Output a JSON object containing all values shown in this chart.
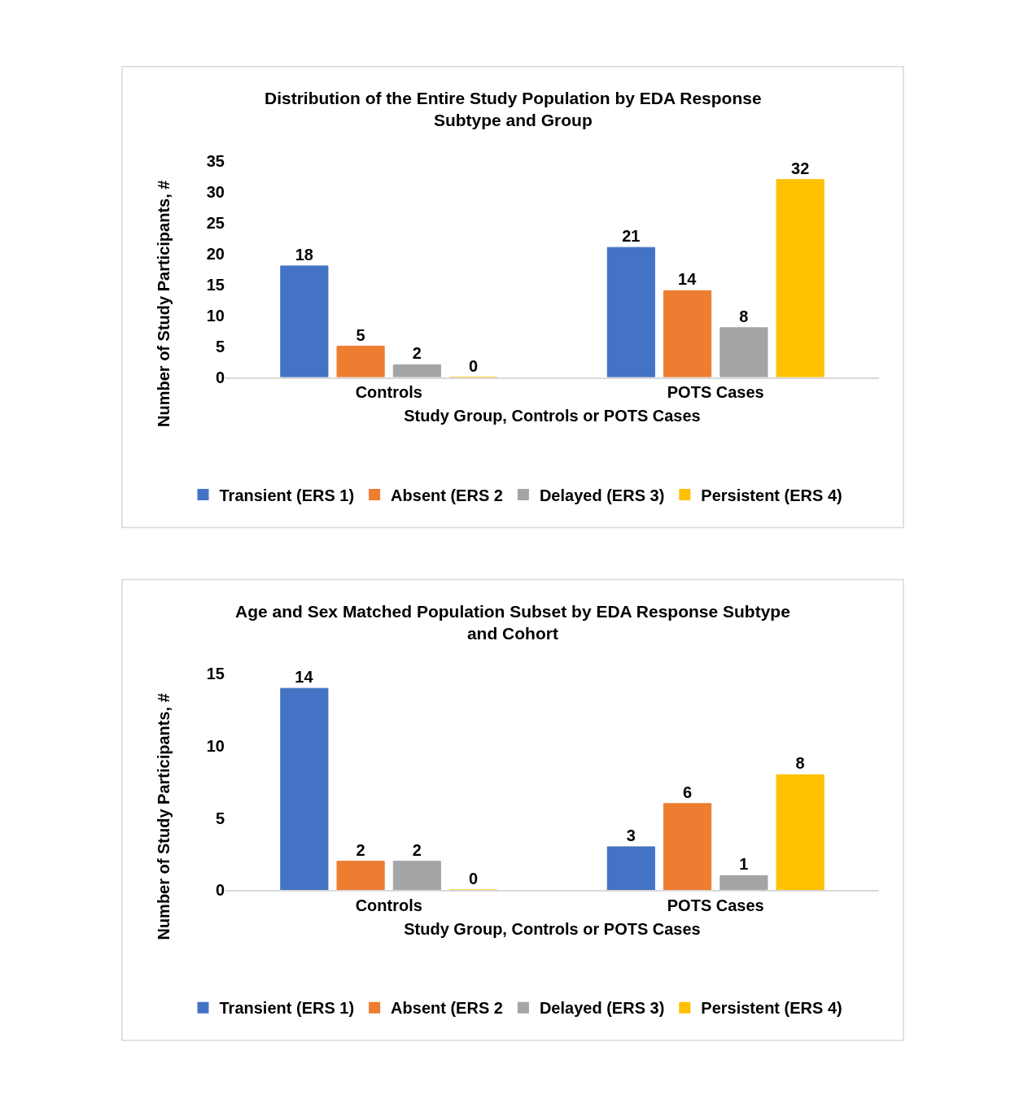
{
  "chart_data": [
    {
      "type": "bar",
      "title": "Distribution of the Entire Study Population by EDA Response Subtype and Group",
      "xlabel": "Study Group, Controls or POTS Cases",
      "ylabel": "Number of Study Participants, #",
      "categories": [
        "Controls",
        "POTS Cases"
      ],
      "ylim": [
        0,
        35
      ],
      "yticks": [
        0,
        5,
        10,
        15,
        20,
        25,
        30,
        35
      ],
      "data_labels": true,
      "legend": "bottom",
      "series": [
        {
          "name": "Transient (ERS 1)",
          "color": "#4472c4",
          "values": [
            18,
            21
          ]
        },
        {
          "name": "Absent (ERS 2",
          "color": "#ed7d31",
          "values": [
            5,
            14
          ]
        },
        {
          "name": "Delayed (ERS 3)",
          "color": "#a5a5a5",
          "values": [
            2,
            8
          ]
        },
        {
          "name": "Persistent (ERS 4)",
          "color": "#ffc000",
          "values": [
            0,
            32
          ]
        }
      ]
    },
    {
      "type": "bar",
      "title": "Age and Sex Matched Population Subset by EDA Response Subtype and Cohort",
      "xlabel": "Study Group, Controls or POTS Cases",
      "ylabel": "Number of Study Participants, #",
      "categories": [
        "Controls",
        "POTS Cases"
      ],
      "ylim": [
        0,
        15
      ],
      "yticks": [
        0,
        5,
        10,
        15
      ],
      "data_labels": true,
      "legend": "bottom",
      "series": [
        {
          "name": "Transient (ERS 1)",
          "color": "#4472c4",
          "values": [
            14,
            3
          ]
        },
        {
          "name": "Absent (ERS 2",
          "color": "#ed7d31",
          "values": [
            2,
            6
          ]
        },
        {
          "name": "Delayed (ERS 3)",
          "color": "#a5a5a5",
          "values": [
            2,
            1
          ]
        },
        {
          "name": "Persistent (ERS 4)",
          "color": "#ffc000",
          "values": [
            0,
            8
          ]
        }
      ]
    }
  ]
}
